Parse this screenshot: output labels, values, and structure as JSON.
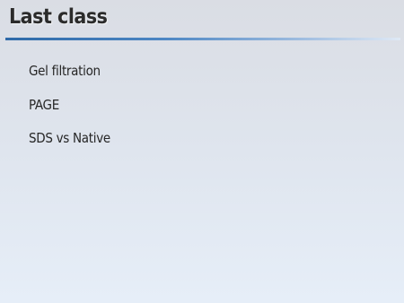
{
  "slide": {
    "title": "Last class",
    "bullets": [
      "Gel filtration",
      "PAGE",
      "SDS vs Native"
    ]
  }
}
